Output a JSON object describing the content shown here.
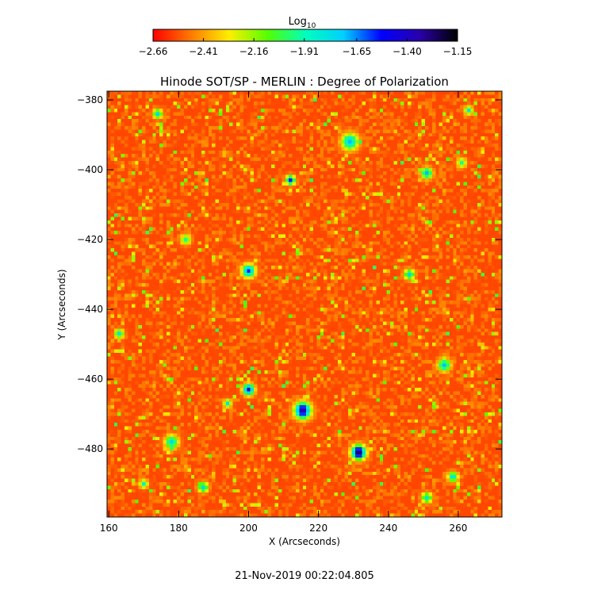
{
  "chart_data": {
    "type": "heatmap",
    "title": "Hinode SOT/SP - MERLIN : Degree of Polarization",
    "xlabel": "X (Arcseconds)",
    "ylabel": "Y (Arcseconds)",
    "timestamp": "21-Nov-2019 00:22:04.805",
    "xlim": [
      159.5,
      272.5
    ],
    "ylim": [
      -499.5,
      -377.5
    ],
    "x_ticks": [
      160,
      180,
      200,
      220,
      240,
      260
    ],
    "x_tick_labels": [
      "160",
      "180",
      "200",
      "220",
      "240",
      "260"
    ],
    "y_ticks": [
      -380,
      -400,
      -420,
      -440,
      -460,
      -480
    ],
    "y_tick_labels": [
      "−380",
      "−400",
      "−420",
      "−440",
      "−460",
      "−480"
    ],
    "grid": false,
    "colorbar": {
      "title_base": "Log",
      "title_sub": "10",
      "min": -2.66,
      "max": -1.15,
      "tick_values": [
        -2.66,
        -2.41,
        -2.16,
        -1.91,
        -1.65,
        -1.4,
        -1.15
      ],
      "tick_labels": [
        "−2.66",
        "−2.41",
        "−2.16",
        "−1.91",
        "−1.65",
        "−1.40",
        "−1.15"
      ],
      "colormap": [
        "#ff0000",
        "#ff7a00",
        "#ffee00",
        "#55ff00",
        "#00ffbb",
        "#00d0ff",
        "#0000ff",
        "#2a00aa",
        "#000000"
      ]
    },
    "background_level": -2.55,
    "features": [
      {
        "x": 231.5,
        "y": -481,
        "peak": -1.2,
        "sigma": 1.4
      },
      {
        "x": 215.5,
        "y": -469,
        "peak": -1.3,
        "sigma": 1.6
      },
      {
        "x": 200,
        "y": -463,
        "peak": -1.35,
        "sigma": 1.1
      },
      {
        "x": 200,
        "y": -429,
        "peak": -1.55,
        "sigma": 1.3
      },
      {
        "x": 212,
        "y": -403,
        "peak": -1.55,
        "sigma": 0.9
      },
      {
        "x": 229,
        "y": -392,
        "peak": -1.7,
        "sigma": 1.6
      },
      {
        "x": 251,
        "y": -401,
        "peak": -1.7,
        "sigma": 1.1
      },
      {
        "x": 246,
        "y": -430,
        "peak": -1.75,
        "sigma": 1.0
      },
      {
        "x": 256,
        "y": -456,
        "peak": -1.7,
        "sigma": 1.2
      },
      {
        "x": 258.5,
        "y": -488,
        "peak": -1.75,
        "sigma": 1.0
      },
      {
        "x": 251,
        "y": -494,
        "peak": -1.8,
        "sigma": 1.0
      },
      {
        "x": 178,
        "y": -478,
        "peak": -1.75,
        "sigma": 1.3
      },
      {
        "x": 187,
        "y": -491,
        "peak": -1.75,
        "sigma": 1.0
      },
      {
        "x": 174,
        "y": -384,
        "peak": -1.75,
        "sigma": 0.9
      },
      {
        "x": 263,
        "y": -383,
        "peak": -1.8,
        "sigma": 0.8
      },
      {
        "x": 163,
        "y": -447,
        "peak": -1.8,
        "sigma": 0.9
      },
      {
        "x": 194,
        "y": -467,
        "peak": -1.8,
        "sigma": 0.8
      },
      {
        "x": 170,
        "y": -490,
        "peak": -1.85,
        "sigma": 0.8
      },
      {
        "x": 261,
        "y": -398,
        "peak": -1.95,
        "sigma": 0.9
      },
      {
        "x": 182,
        "y": -420,
        "peak": -1.95,
        "sigma": 1.0
      }
    ]
  }
}
